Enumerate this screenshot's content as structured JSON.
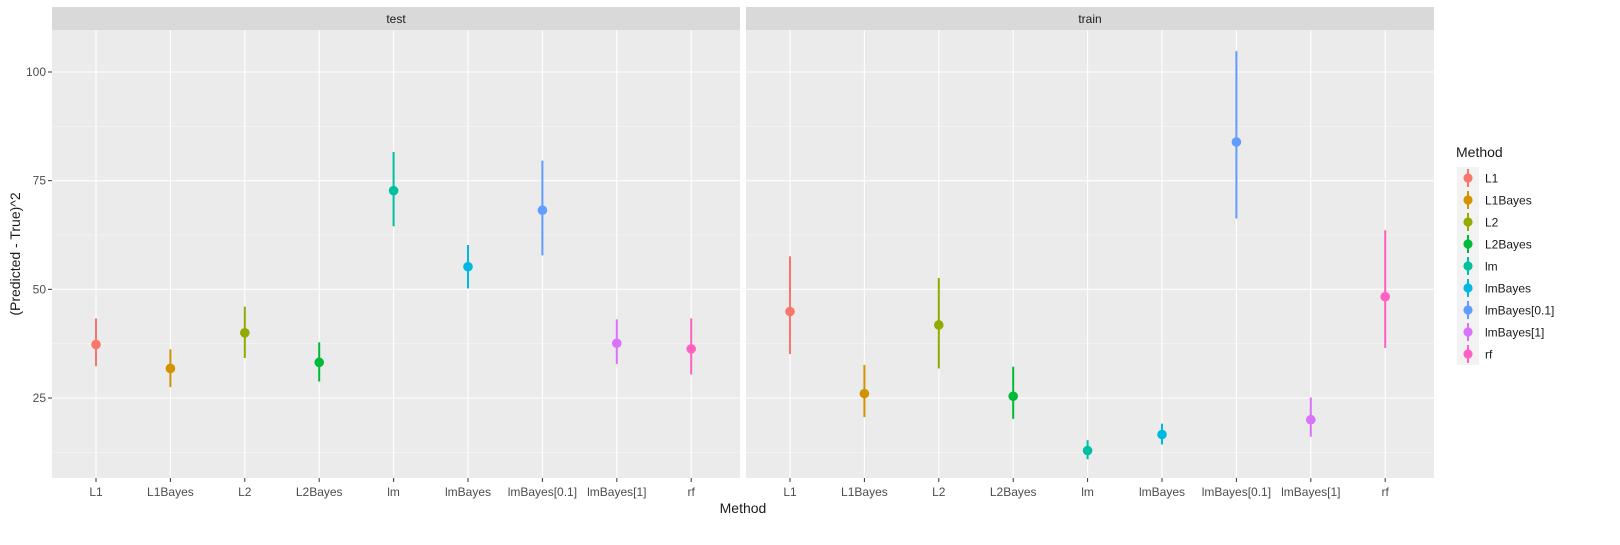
{
  "chart_data": {
    "type": "pointrange",
    "xlabel": "Method",
    "ylabel": "(Predicted - True)^2",
    "ylim": [
      8,
      112
    ],
    "yticks": [
      25,
      50,
      75,
      100
    ],
    "categories": [
      "L1",
      "L1Bayes",
      "L2",
      "L2Bayes",
      "lm",
      "lmBayes",
      "lmBayes[0.1]",
      "lmBayes[1]",
      "rf"
    ],
    "colors": {
      "L1": "#F8766D",
      "L1Bayes": "#D39200",
      "L2": "#93AA00",
      "L2Bayes": "#00BA38",
      "lm": "#00C19F",
      "lmBayes": "#00B9E3",
      "lmBayes[0.1]": "#619CFF",
      "lmBayes[1]": "#DB72FB",
      "rf": "#FF61C3"
    },
    "panels": [
      {
        "label": "test",
        "points": [
          {
            "method": "L1",
            "y": 37.3,
            "ymin": 32.3,
            "ymax": 43.3
          },
          {
            "method": "L1Bayes",
            "y": 31.8,
            "ymin": 27.5,
            "ymax": 36.2
          },
          {
            "method": "L2",
            "y": 40.0,
            "ymin": 34.2,
            "ymax": 46.0
          },
          {
            "method": "L2Bayes",
            "y": 33.2,
            "ymin": 28.8,
            "ymax": 37.8
          },
          {
            "method": "lm",
            "y": 72.7,
            "ymin": 64.5,
            "ymax": 81.6
          },
          {
            "method": "lmBayes",
            "y": 55.2,
            "ymin": 50.2,
            "ymax": 60.2
          },
          {
            "method": "lmBayes[0.1]",
            "y": 68.2,
            "ymin": 57.8,
            "ymax": 79.6
          },
          {
            "method": "lmBayes[1]",
            "y": 37.6,
            "ymin": 32.8,
            "ymax": 43.1
          },
          {
            "method": "rf",
            "y": 36.3,
            "ymin": 30.4,
            "ymax": 43.3
          }
        ]
      },
      {
        "label": "train",
        "points": [
          {
            "method": "L1",
            "y": 44.9,
            "ymin": 35.1,
            "ymax": 57.6
          },
          {
            "method": "L1Bayes",
            "y": 26.0,
            "ymin": 20.6,
            "ymax": 32.6
          },
          {
            "method": "L2",
            "y": 41.8,
            "ymin": 31.8,
            "ymax": 52.6
          },
          {
            "method": "L2Bayes",
            "y": 25.4,
            "ymin": 20.2,
            "ymax": 32.2
          },
          {
            "method": "lm",
            "y": 12.9,
            "ymin": 10.9,
            "ymax": 15.3
          },
          {
            "method": "lmBayes",
            "y": 16.6,
            "ymin": 14.3,
            "ymax": 19.1
          },
          {
            "method": "lmBayes[0.1]",
            "y": 83.9,
            "ymin": 66.3,
            "ymax": 104.8
          },
          {
            "method": "lmBayes[1]",
            "y": 20.0,
            "ymin": 16.1,
            "ymax": 25.1
          },
          {
            "method": "rf",
            "y": 48.3,
            "ymin": 36.5,
            "ymax": 63.6
          }
        ]
      }
    ],
    "legend": {
      "title": "Method",
      "position": "right",
      "entries": [
        "L1",
        "L1Bayes",
        "L2",
        "L2Bayes",
        "lm",
        "lmBayes",
        "lmBayes[0.1]",
        "lmBayes[1]",
        "rf"
      ]
    },
    "grid": true
  }
}
